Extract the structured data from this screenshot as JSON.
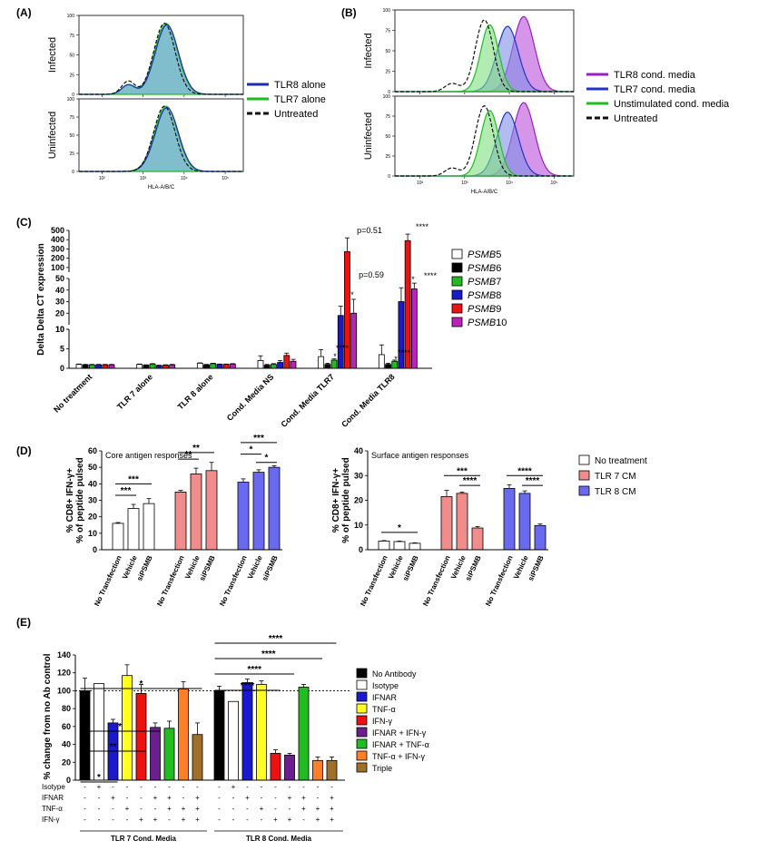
{
  "panels": {
    "A": "(A)",
    "B": "(B)",
    "C": "(C)",
    "D": "(D)",
    "E": "(E)"
  },
  "chart_data": [
    {
      "id": "A",
      "type": "histogram-overlay",
      "rows": [
        "Infected",
        "Uninfected"
      ],
      "xlabel": "HLA-A/B/C",
      "yticks": [
        "0",
        "25",
        "50",
        "75",
        "100"
      ],
      "xticks": [
        "10²",
        "10³",
        "10⁴",
        "10⁵"
      ],
      "legend": [
        {
          "label": "TLR8 alone",
          "color": "#1a2db0",
          "dash": false
        },
        {
          "label": "TLR7 alone",
          "color": "#22bb22",
          "dash": false
        },
        {
          "label": "Untreated",
          "color": "#111111",
          "dash": true
        }
      ]
    },
    {
      "id": "B",
      "type": "histogram-overlay",
      "rows": [
        "Infected",
        "Uninfected"
      ],
      "xlabel": "HLA-A/B/C",
      "yticks": [
        "0",
        "25",
        "50",
        "75",
        "100"
      ],
      "xticks": [
        "10²",
        "10³",
        "10⁴",
        "10⁵"
      ],
      "legend": [
        {
          "label": "TLR8 cond. media",
          "color": "#9b1fbf",
          "dash": false
        },
        {
          "label": "TLR7 cond. media",
          "color": "#2233c8",
          "dash": false
        },
        {
          "label": "Unstimulated cond. media",
          "color": "#22bb22",
          "dash": false
        },
        {
          "label": "Untreated",
          "color": "#111111",
          "dash": true
        }
      ]
    },
    {
      "id": "C",
      "type": "bar",
      "ylabel": "Delta Delta CT expression",
      "categories": [
        "No treatment",
        "TLR 7 alone",
        "TLR 8 alone",
        "Cond. Media NS",
        "Cond. Media TLR7",
        "Cond. Media TLR8"
      ],
      "series": [
        {
          "name": "PSMB5",
          "color": "#ffffff",
          "values": [
            1.0,
            1.0,
            1.3,
            2.0,
            3.0,
            3.5
          ],
          "err": [
            0.1,
            0.1,
            0.1,
            1.2,
            1.8,
            2.5
          ]
        },
        {
          "name": "PSMB6",
          "color": "#000000",
          "values": [
            0.9,
            0.8,
            0.9,
            0.8,
            1.0,
            1.0
          ],
          "err": [
            0.1,
            0.1,
            0.1,
            0.2,
            0.3,
            0.3
          ]
        },
        {
          "name": "PSMB7",
          "color": "#22bb22",
          "values": [
            0.9,
            1.1,
            1.2,
            1.0,
            2.1,
            1.8
          ],
          "err": [
            0.1,
            0.1,
            0.1,
            0.2,
            0.3,
            0.3
          ]
        },
        {
          "name": "PSMB8",
          "color": "#1a1acc",
          "values": [
            0.9,
            0.7,
            1.0,
            1.5,
            18,
            30
          ],
          "err": [
            0.1,
            0.1,
            0.1,
            0.5,
            8,
            12
          ]
        },
        {
          "name": "PSMB9",
          "color": "#ee1111",
          "values": [
            0.9,
            0.8,
            1.0,
            3.3,
            270,
            390
          ],
          "err": [
            0.1,
            0.1,
            0.1,
            0.6,
            150,
            70
          ]
        },
        {
          "name": "PSMB10",
          "color": "#bb22bb",
          "values": [
            0.9,
            0.9,
            1.1,
            1.8,
            20,
            41
          ],
          "err": [
            0.1,
            0.1,
            0.1,
            0.5,
            12,
            5
          ]
        }
      ],
      "yaxis_segments": [
        {
          "range": [
            0,
            10
          ],
          "ticks": [
            "0",
            "5",
            "10"
          ]
        },
        {
          "range": [
            10,
            50
          ],
          "ticks": [
            "10",
            "20",
            "30",
            "40",
            "50"
          ]
        },
        {
          "range": [
            50,
            500
          ],
          "ticks": [
            "100",
            "200",
            "300",
            "400",
            "500"
          ]
        }
      ],
      "annotations": [
        "p=0.51",
        "p=0.59",
        "*",
        "****",
        "*",
        "****",
        "****",
        "*",
        "****",
        "*",
        "****"
      ]
    },
    {
      "id": "D-left",
      "type": "bar",
      "title": "Core antigen responses",
      "ylabel1": "% CD8+ IFN-γ+",
      "ylabel2": "% of peptide pulsed",
      "ylim": [
        0,
        60
      ],
      "yticks": [
        "0",
        "10",
        "20",
        "30",
        "40",
        "50",
        "60"
      ],
      "categories": [
        "No Transfection",
        "Vehicle",
        "siPSMB",
        "No Transfection",
        "Vehicle",
        "siPSMB",
        "No Transfection",
        "Vehicle",
        "siPSMB"
      ],
      "colors": [
        "#ffffff",
        "#ffffff",
        "#ffffff",
        "#f08c8c",
        "#f08c8c",
        "#f08c8c",
        "#6a6af0",
        "#6a6af0",
        "#6a6af0"
      ],
      "values": [
        16,
        25,
        28,
        35,
        46,
        48,
        41,
        47,
        50
      ],
      "err": [
        0.5,
        2.5,
        3,
        1,
        3.5,
        5,
        2,
        1.5,
        1
      ],
      "sig": [
        "***",
        "***",
        "**",
        "**",
        "***",
        "*",
        "*"
      ]
    },
    {
      "id": "D-right",
      "type": "bar",
      "title": "Surface antigen responses",
      "ylabel1": "% CD8+ IFN-γ+",
      "ylabel2": "% of peptide pulsed",
      "ylim": [
        0,
        40
      ],
      "yticks": [
        "0",
        "10",
        "20",
        "30",
        "40"
      ],
      "categories": [
        "No Transfection",
        "Vehicle",
        "siPSMB",
        "No Transfection",
        "Vehicle",
        "siPSMB",
        "No Transfection",
        "Vehicle",
        "siPSMB"
      ],
      "colors": [
        "#ffffff",
        "#ffffff",
        "#ffffff",
        "#f08c8c",
        "#f08c8c",
        "#f08c8c",
        "#6a6af0",
        "#6a6af0",
        "#6a6af0"
      ],
      "values": [
        3.5,
        3.3,
        2.6,
        21.5,
        22.8,
        8.8,
        24.8,
        22.8,
        9.8
      ],
      "err": [
        0.2,
        0.2,
        0.2,
        2.5,
        0.5,
        0.6,
        1.5,
        1.0,
        0.6
      ],
      "sig": [
        "*",
        "***",
        "****",
        "****",
        "****"
      ],
      "legend": [
        {
          "label": "No treatment",
          "color": "#ffffff"
        },
        {
          "label": "TLR 7 CM",
          "color": "#f08c8c"
        },
        {
          "label": "TLR 8 CM",
          "color": "#6a6af0"
        }
      ]
    },
    {
      "id": "E",
      "type": "bar",
      "ylabel": "% change from no Ab control",
      "ylim": [
        0,
        140
      ],
      "yticks": [
        "0",
        "20",
        "40",
        "60",
        "80",
        "100",
        "120",
        "140"
      ],
      "reference_line": 100,
      "groups": [
        "TLR 7 Cond. Media",
        "TLR 8 Cond. Media"
      ],
      "series_names": [
        "No Antibody",
        "Isotype",
        "IFNAR",
        "TNF-α",
        "IFN-γ",
        "IFNAR + IFN-γ",
        "IFNAR + TNF-α",
        "TNF-α + IFN-γ",
        "Triple"
      ],
      "colors": [
        "#000000",
        "#ffffff",
        "#1a1acc",
        "#ffff22",
        "#ee1111",
        "#6b1f8f",
        "#22bb22",
        "#ff7f27",
        "#a0702a"
      ],
      "values": [
        [
          100,
          108,
          64,
          117,
          97,
          59,
          58,
          102,
          51
        ],
        [
          100,
          88,
          109,
          107,
          30,
          28,
          104,
          22,
          22
        ]
      ],
      "err": [
        [
          14,
          0,
          4,
          12,
          10,
          5,
          8,
          8,
          13
        ],
        [
          5,
          0,
          4,
          4,
          4,
          2,
          3,
          4,
          4
        ]
      ],
      "sig_tlr7": [
        "*",
        "**",
        "*",
        "*"
      ],
      "sig_tlr8": [
        "****",
        "****",
        "****",
        "****"
      ],
      "table_rows": [
        {
          "label": "Isotype",
          "cells": [
            [
              "-",
              "+",
              "-",
              "-",
              "-",
              "-",
              "-",
              "-",
              "-"
            ],
            [
              "-",
              "+",
              "-",
              "-",
              "-",
              "-",
              "-",
              "-",
              "-"
            ]
          ]
        },
        {
          "label": "IFNAR",
          "cells": [
            [
              "-",
              "-",
              "+",
              "-",
              "-",
              "+",
              "+",
              "-",
              "+"
            ],
            [
              "-",
              "-",
              "+",
              "-",
              "-",
              "+",
              "+",
              "-",
              "+"
            ]
          ]
        },
        {
          "label": "TNF-α",
          "cells": [
            [
              "-",
              "-",
              "-",
              "+",
              "-",
              "-",
              "+",
              "+",
              "+"
            ],
            [
              "-",
              "-",
              "-",
              "+",
              "-",
              "-",
              "+",
              "+",
              "+"
            ]
          ]
        },
        {
          "label": "IFN-γ",
          "cells": [
            [
              "-",
              "-",
              "-",
              "-",
              "+",
              "+",
              "-",
              "+",
              "+"
            ],
            [
              "-",
              "-",
              "-",
              "-",
              "+",
              "+",
              "-",
              "+",
              "+"
            ]
          ]
        }
      ]
    }
  ]
}
